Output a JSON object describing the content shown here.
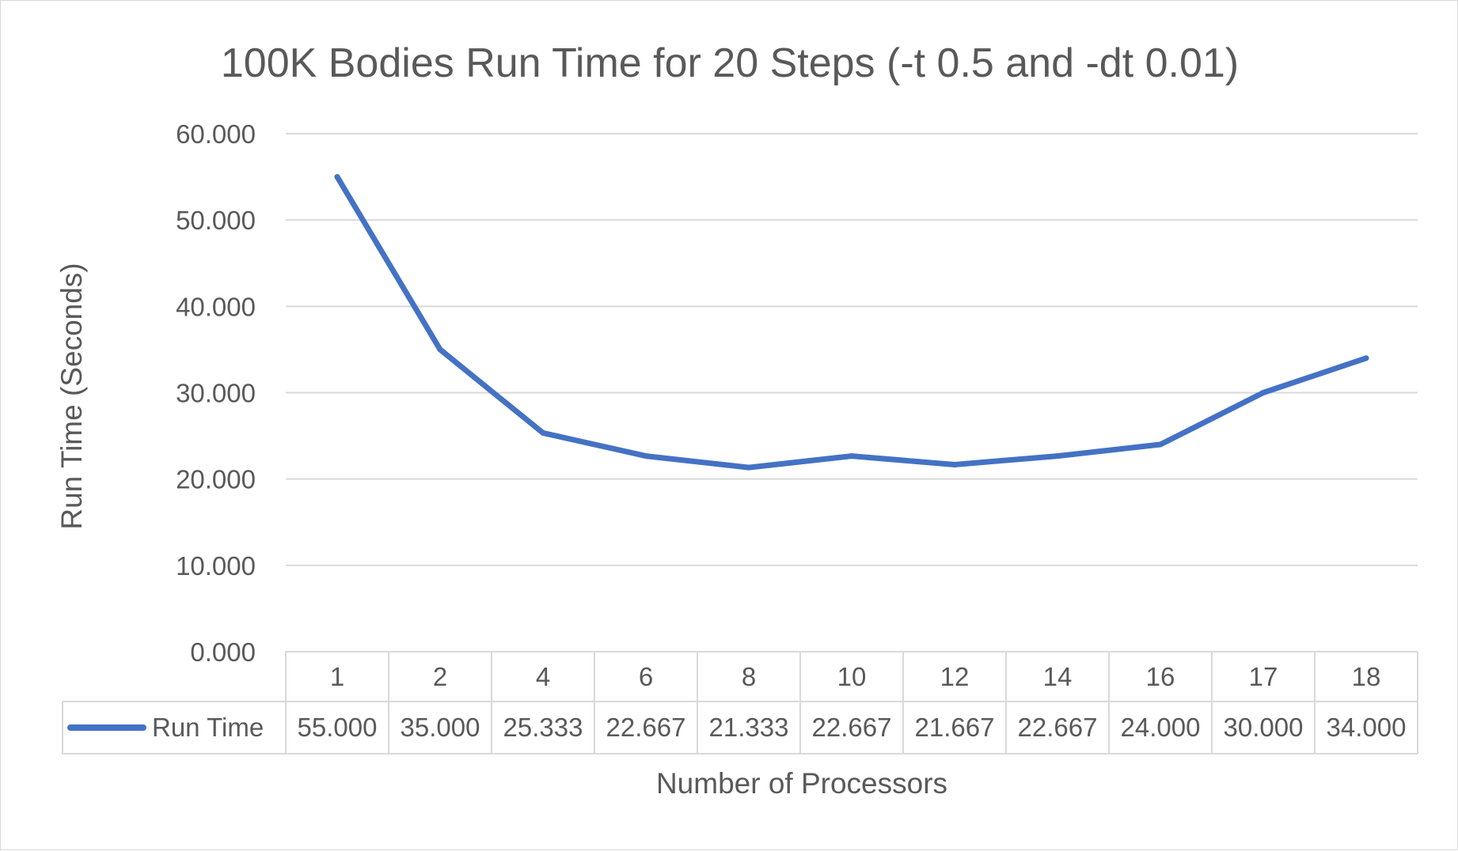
{
  "chart_data": {
    "type": "line",
    "title": "100K Bodies Run Time for 20 Steps (-t 0.5 and -dt 0.01)",
    "xlabel": "Number of Processors",
    "ylabel": "Run Time (Seconds)",
    "ylim": [
      0,
      60
    ],
    "y_ticks": [
      "0.000",
      "10.000",
      "20.000",
      "30.000",
      "40.000",
      "50.000",
      "60.000"
    ],
    "grid": true,
    "legend": "data-table",
    "categories": [
      "1",
      "2",
      "4",
      "6",
      "8",
      "10",
      "12",
      "14",
      "16",
      "17",
      "18"
    ],
    "series": [
      {
        "name": "Run Time",
        "color": "#4472c4",
        "values": [
          55.0,
          35.0,
          25.333,
          22.667,
          21.333,
          22.667,
          21.667,
          22.667,
          24.0,
          30.0,
          34.0
        ],
        "labels": [
          "55.000",
          "35.000",
          "25.333",
          "22.667",
          "21.333",
          "22.667",
          "21.667",
          "22.667",
          "24.000",
          "30.000",
          "34.000"
        ]
      }
    ]
  }
}
